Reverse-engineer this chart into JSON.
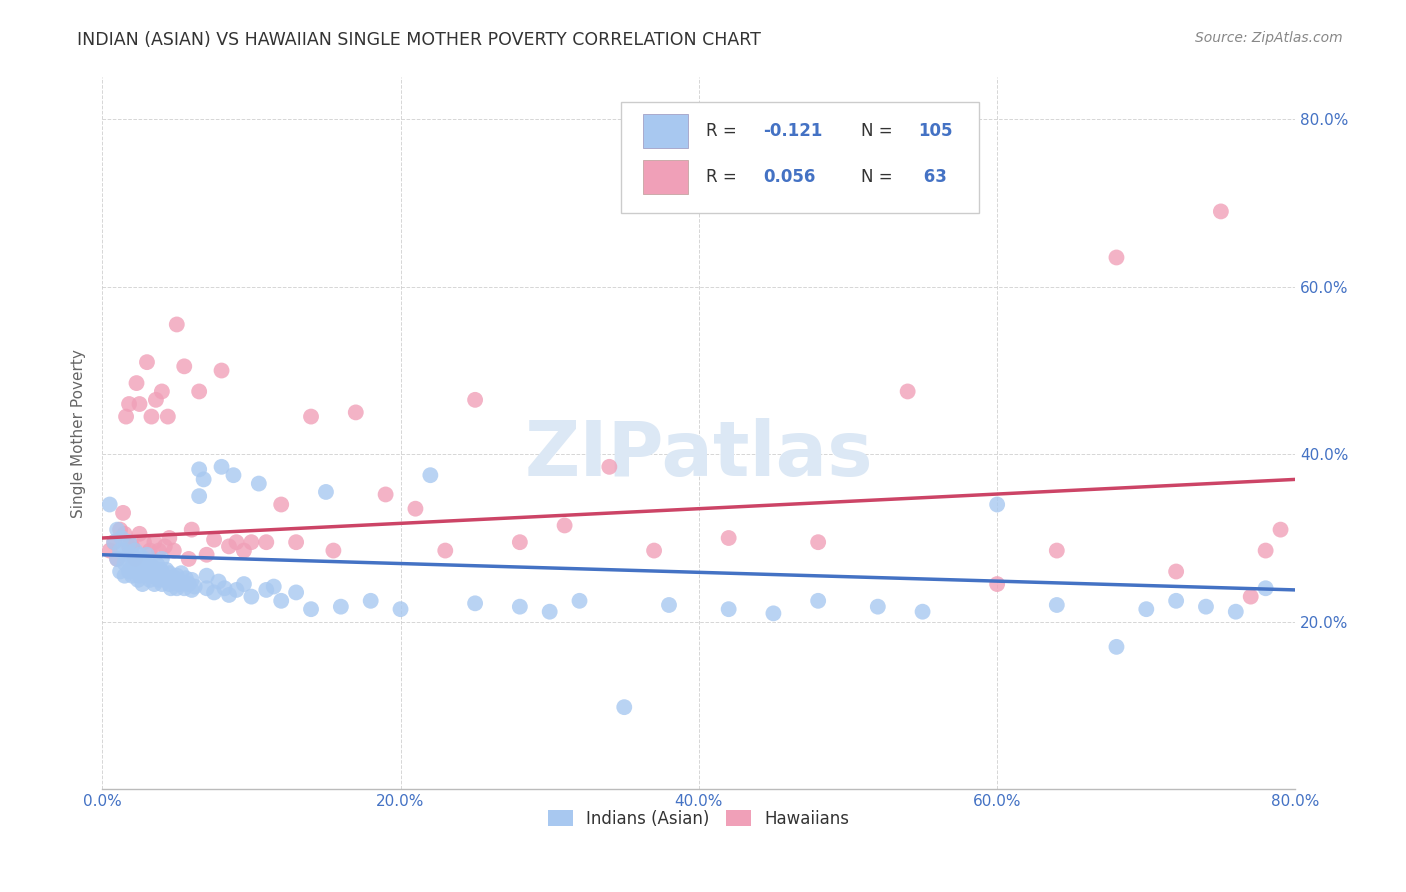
{
  "title": "INDIAN (ASIAN) VS HAWAIIAN SINGLE MOTHER POVERTY CORRELATION CHART",
  "source": "Source: ZipAtlas.com",
  "ylabel": "Single Mother Poverty",
  "xlim": [
    0.0,
    0.8
  ],
  "ylim": [
    0.0,
    0.85
  ],
  "xtick_labels": [
    "0.0%",
    "20.0%",
    "40.0%",
    "60.0%",
    "80.0%"
  ],
  "xtick_positions": [
    0.0,
    0.2,
    0.4,
    0.6,
    0.8
  ],
  "ytick_labels": [
    "20.0%",
    "40.0%",
    "60.0%",
    "80.0%"
  ],
  "ytick_positions": [
    0.2,
    0.4,
    0.6,
    0.8
  ],
  "blue_color": "#a8c8f0",
  "pink_color": "#f0a0b8",
  "blue_line_color": "#4472c4",
  "pink_line_color": "#cc4466",
  "legend_R_color": "#4472c4",
  "background_color": "#ffffff",
  "grid_color": "#cccccc",
  "title_color": "#333333",
  "watermark_text": "ZIPatlas",
  "watermark_color": "#dce8f5",
  "legend_label_blue": "Indians (Asian)",
  "legend_label_pink": "Hawaiians",
  "blue_scatter_x": [
    0.005,
    0.008,
    0.01,
    0.01,
    0.012,
    0.012,
    0.013,
    0.015,
    0.015,
    0.015,
    0.017,
    0.018,
    0.018,
    0.018,
    0.02,
    0.02,
    0.02,
    0.022,
    0.022,
    0.022,
    0.023,
    0.024,
    0.025,
    0.025,
    0.025,
    0.026,
    0.027,
    0.028,
    0.028,
    0.03,
    0.03,
    0.03,
    0.032,
    0.032,
    0.033,
    0.034,
    0.035,
    0.035,
    0.036,
    0.037,
    0.038,
    0.039,
    0.04,
    0.04,
    0.04,
    0.042,
    0.043,
    0.045,
    0.045,
    0.046,
    0.048,
    0.05,
    0.05,
    0.052,
    0.053,
    0.055,
    0.056,
    0.058,
    0.06,
    0.06,
    0.062,
    0.065,
    0.065,
    0.068,
    0.07,
    0.07,
    0.075,
    0.078,
    0.08,
    0.082,
    0.085,
    0.088,
    0.09,
    0.095,
    0.1,
    0.105,
    0.11,
    0.115,
    0.12,
    0.13,
    0.14,
    0.15,
    0.16,
    0.18,
    0.2,
    0.22,
    0.25,
    0.28,
    0.3,
    0.32,
    0.35,
    0.38,
    0.42,
    0.45,
    0.48,
    0.52,
    0.55,
    0.6,
    0.64,
    0.68,
    0.7,
    0.72,
    0.74,
    0.76,
    0.78
  ],
  "blue_scatter_y": [
    0.34,
    0.295,
    0.275,
    0.31,
    0.26,
    0.285,
    0.3,
    0.27,
    0.285,
    0.255,
    0.275,
    0.26,
    0.28,
    0.295,
    0.265,
    0.28,
    0.255,
    0.27,
    0.285,
    0.26,
    0.275,
    0.25,
    0.265,
    0.28,
    0.255,
    0.27,
    0.245,
    0.26,
    0.275,
    0.255,
    0.268,
    0.28,
    0.25,
    0.268,
    0.255,
    0.265,
    0.245,
    0.26,
    0.255,
    0.268,
    0.25,
    0.262,
    0.245,
    0.26,
    0.275,
    0.25,
    0.262,
    0.245,
    0.258,
    0.24,
    0.253,
    0.24,
    0.255,
    0.245,
    0.258,
    0.24,
    0.252,
    0.245,
    0.238,
    0.25,
    0.242,
    0.382,
    0.35,
    0.37,
    0.24,
    0.255,
    0.235,
    0.248,
    0.385,
    0.24,
    0.232,
    0.375,
    0.238,
    0.245,
    0.23,
    0.365,
    0.238,
    0.242,
    0.225,
    0.235,
    0.215,
    0.355,
    0.218,
    0.225,
    0.215,
    0.375,
    0.222,
    0.218,
    0.212,
    0.225,
    0.098,
    0.22,
    0.215,
    0.21,
    0.225,
    0.218,
    0.212,
    0.34,
    0.22,
    0.17,
    0.215,
    0.225,
    0.218,
    0.212,
    0.24
  ],
  "pink_scatter_x": [
    0.005,
    0.008,
    0.01,
    0.012,
    0.014,
    0.015,
    0.016,
    0.018,
    0.018,
    0.02,
    0.022,
    0.023,
    0.025,
    0.025,
    0.028,
    0.03,
    0.032,
    0.033,
    0.035,
    0.036,
    0.038,
    0.04,
    0.042,
    0.044,
    0.045,
    0.048,
    0.05,
    0.055,
    0.058,
    0.06,
    0.065,
    0.07,
    0.075,
    0.08,
    0.085,
    0.09,
    0.095,
    0.1,
    0.11,
    0.12,
    0.13,
    0.14,
    0.155,
    0.17,
    0.19,
    0.21,
    0.23,
    0.25,
    0.28,
    0.31,
    0.34,
    0.37,
    0.42,
    0.48,
    0.54,
    0.6,
    0.64,
    0.68,
    0.72,
    0.75,
    0.77,
    0.78,
    0.79
  ],
  "pink_scatter_y": [
    0.285,
    0.295,
    0.275,
    0.31,
    0.33,
    0.305,
    0.445,
    0.29,
    0.46,
    0.29,
    0.275,
    0.485,
    0.305,
    0.46,
    0.295,
    0.51,
    0.285,
    0.445,
    0.295,
    0.465,
    0.285,
    0.475,
    0.29,
    0.445,
    0.3,
    0.285,
    0.555,
    0.505,
    0.275,
    0.31,
    0.475,
    0.28,
    0.298,
    0.5,
    0.29,
    0.295,
    0.285,
    0.295,
    0.295,
    0.34,
    0.295,
    0.445,
    0.285,
    0.45,
    0.352,
    0.335,
    0.285,
    0.465,
    0.295,
    0.315,
    0.385,
    0.285,
    0.3,
    0.295,
    0.475,
    0.245,
    0.285,
    0.635,
    0.26,
    0.69,
    0.23,
    0.285,
    0.31
  ]
}
